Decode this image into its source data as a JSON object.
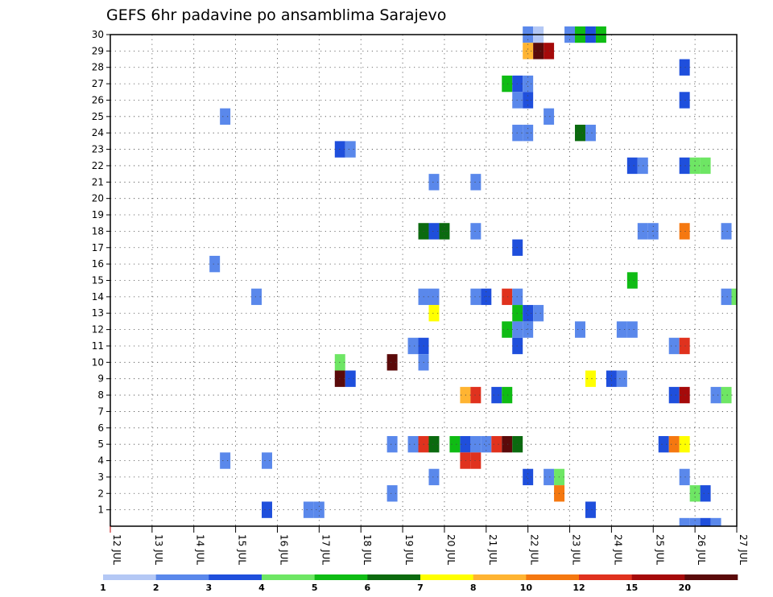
{
  "chart_data": {
    "type": "heatmap",
    "title": "GEFS 6hr padavine po ansamblima Sarajevo",
    "y_ticks": [
      "1",
      "2",
      "3",
      "4",
      "5",
      "6",
      "7",
      "8",
      "9",
      "10",
      "11",
      "12",
      "13",
      "14",
      "15",
      "16",
      "17",
      "18",
      "19",
      "20",
      "21",
      "22",
      "23",
      "24",
      "25",
      "26",
      "27",
      "28",
      "29",
      "30"
    ],
    "x_ticks": [
      "12 JUL",
      "13 JUL",
      "14 JUL",
      "15 JUL",
      "16 JUL",
      "17 JUL",
      "18 JUL",
      "19 JUL",
      "20 JUL",
      "21 JUL",
      "22 JUL",
      "23 JUL",
      "24 JUL",
      "25 JUL",
      "26 JUL",
      "27 JUL"
    ],
    "xlim": [
      12,
      27
    ],
    "ylim": [
      0,
      30
    ],
    "grid": true,
    "colorbar": {
      "ticks": [
        "1",
        "2",
        "3",
        "4",
        "5",
        "6",
        "7",
        "8",
        "10",
        "12",
        "15",
        "20"
      ],
      "colors": [
        "#b4c8f5",
        "#5a88eb",
        "#1f4fdc",
        "#6ee664",
        "#0fbc14",
        "#0b6a0f",
        "#ffff00",
        "#ffb432",
        "#f57810",
        "#e0321e",
        "#a50a0a",
        "#5a0a0a"
      ]
    },
    "cells": [
      [
        22,
        30,
        1
      ],
      [
        22.25,
        30,
        0
      ],
      [
        23,
        30,
        1
      ],
      [
        23.25,
        30,
        4
      ],
      [
        23.5,
        30,
        2
      ],
      [
        23.75,
        30,
        4
      ],
      [
        22,
        29,
        7
      ],
      [
        22.25,
        29,
        11
      ],
      [
        22.5,
        29,
        10
      ],
      [
        25.75,
        28,
        2
      ],
      [
        21.5,
        27,
        4
      ],
      [
        21.75,
        27,
        2
      ],
      [
        22,
        27,
        1
      ],
      [
        21.75,
        26,
        1
      ],
      [
        22,
        26,
        2
      ],
      [
        25.75,
        26,
        2
      ],
      [
        14.75,
        25,
        1
      ],
      [
        22.5,
        25,
        1
      ],
      [
        21.75,
        24,
        1
      ],
      [
        22,
        24,
        1
      ],
      [
        23.25,
        24,
        5
      ],
      [
        23.5,
        24,
        1
      ],
      [
        17.5,
        23,
        2
      ],
      [
        17.75,
        23,
        1
      ],
      [
        24.5,
        22,
        2
      ],
      [
        24.75,
        22,
        1
      ],
      [
        25.75,
        22,
        2
      ],
      [
        26,
        22,
        3
      ],
      [
        26.25,
        22,
        3
      ],
      [
        19.75,
        21,
        1
      ],
      [
        20.75,
        21,
        1
      ],
      [
        19.5,
        18,
        5
      ],
      [
        19.75,
        18,
        2
      ],
      [
        20,
        18,
        5
      ],
      [
        20.75,
        18,
        1
      ],
      [
        24.75,
        18,
        1
      ],
      [
        25,
        18,
        1
      ],
      [
        25.75,
        18,
        8
      ],
      [
        26.75,
        18,
        1
      ],
      [
        21.75,
        17,
        2
      ],
      [
        14.5,
        16,
        1
      ],
      [
        24.5,
        15,
        4
      ],
      [
        15.5,
        14,
        1
      ],
      [
        19.5,
        14,
        1
      ],
      [
        19.75,
        14,
        1
      ],
      [
        20.75,
        14,
        1
      ],
      [
        21,
        14,
        2
      ],
      [
        21.5,
        14,
        9
      ],
      [
        21.75,
        14,
        1
      ],
      [
        26.75,
        14,
        1
      ],
      [
        27,
        14,
        3
      ],
      [
        19.75,
        13,
        6
      ],
      [
        21.75,
        13,
        4
      ],
      [
        22,
        13,
        2
      ],
      [
        22.25,
        13,
        1
      ],
      [
        21.5,
        12,
        4
      ],
      [
        21.75,
        12,
        1
      ],
      [
        22,
        12,
        1
      ],
      [
        23.25,
        12,
        1
      ],
      [
        24.25,
        12,
        1
      ],
      [
        24.5,
        12,
        1
      ],
      [
        19.25,
        11,
        1
      ],
      [
        19.5,
        11,
        2
      ],
      [
        21.75,
        11,
        2
      ],
      [
        25.5,
        11,
        1
      ],
      [
        25.75,
        11,
        9
      ],
      [
        17.5,
        10,
        3
      ],
      [
        18.75,
        10,
        11
      ],
      [
        19.5,
        10,
        1
      ],
      [
        17.5,
        9,
        11
      ],
      [
        17.75,
        9,
        2
      ],
      [
        23.5,
        9,
        6
      ],
      [
        24,
        9,
        2
      ],
      [
        24.25,
        9,
        1
      ],
      [
        20.5,
        8,
        7
      ],
      [
        20.75,
        8,
        9
      ],
      [
        21.25,
        8,
        2
      ],
      [
        21.5,
        8,
        4
      ],
      [
        25.5,
        8,
        2
      ],
      [
        25.75,
        8,
        10
      ],
      [
        26.5,
        8,
        1
      ],
      [
        26.75,
        8,
        3
      ],
      [
        18.75,
        5,
        1
      ],
      [
        19.25,
        5,
        1
      ],
      [
        19.5,
        5,
        9
      ],
      [
        19.75,
        5,
        5
      ],
      [
        20.25,
        5,
        4
      ],
      [
        20.5,
        5,
        2
      ],
      [
        20.75,
        5,
        1
      ],
      [
        21,
        5,
        1
      ],
      [
        21.25,
        5,
        9
      ],
      [
        21.5,
        5,
        11
      ],
      [
        21.75,
        5,
        5
      ],
      [
        25.25,
        5,
        2
      ],
      [
        25.5,
        5,
        8
      ],
      [
        25.75,
        5,
        6
      ],
      [
        14.75,
        4,
        1
      ],
      [
        15.75,
        4,
        1
      ],
      [
        20.5,
        4,
        9
      ],
      [
        20.75,
        4,
        9
      ],
      [
        19.75,
        3,
        1
      ],
      [
        22,
        3,
        2
      ],
      [
        22.5,
        3,
        1
      ],
      [
        22.75,
        3,
        3
      ],
      [
        25.75,
        3,
        1
      ],
      [
        18.75,
        2,
        1
      ],
      [
        22.75,
        2,
        8
      ],
      [
        26,
        2,
        3
      ],
      [
        26.25,
        2,
        2
      ],
      [
        15.75,
        1,
        2
      ],
      [
        16.75,
        1,
        1
      ],
      [
        17,
        1,
        1
      ],
      [
        23.5,
        1,
        2
      ],
      [
        25.75,
        0,
        1
      ],
      [
        26,
        0,
        1
      ],
      [
        26.25,
        0,
        2
      ],
      [
        26.5,
        0,
        1
      ]
    ]
  }
}
